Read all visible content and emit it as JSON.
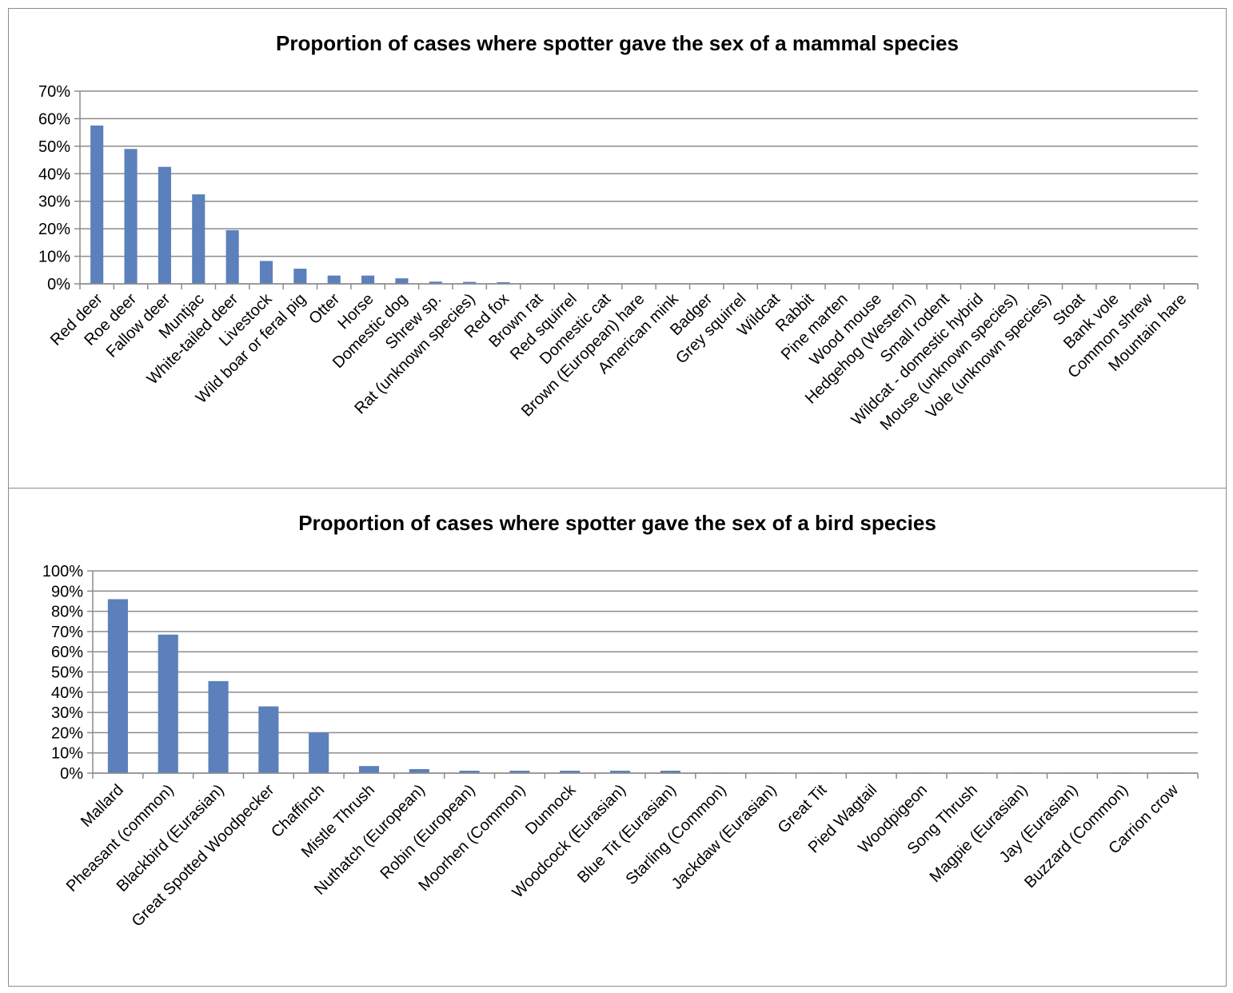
{
  "colors": {
    "bar": "#5b80bb",
    "grid": "#8c8c8c",
    "border": "#8c8c8c"
  },
  "chart_data": [
    {
      "type": "bar",
      "title": "Proportion of cases where spotter gave the sex of a mammal species",
      "xlabel": "",
      "ylabel": "",
      "ylim": [
        0,
        70
      ],
      "yticks": [
        0,
        10,
        20,
        30,
        40,
        50,
        60,
        70
      ],
      "ytick_labels": [
        "0%",
        "10%",
        "20%",
        "30%",
        "40%",
        "50%",
        "60%",
        "70%"
      ],
      "grid": true,
      "legend": "none",
      "categories": [
        "Red deer",
        "Roe deer",
        "Fallow deer",
        "Muntjac",
        "White-tailed deer",
        "Livestock",
        "Wild boar or feral pig",
        "Otter",
        "Horse",
        "Domestic dog",
        "Shrew sp.",
        "Rat (unknown species)",
        "Red fox",
        "Brown rat",
        "Red squirrel",
        "Domestic cat",
        "Brown (European) hare",
        "American mink",
        "Badger",
        "Grey squirrel",
        "Wildcat",
        "Rabbit",
        "Pine marten",
        "Wood mouse",
        "Hedgehog (Western)",
        "Small rodent",
        "Wildcat - domestic hybrid",
        "Mouse (unknown species)",
        "Vole (unknown species)",
        "Stoat",
        "Bank vole",
        "Common shrew",
        "Mountain hare"
      ],
      "values": [
        57.5,
        49,
        42.5,
        32.5,
        19.5,
        8.3,
        5.5,
        3,
        3,
        2,
        0.8,
        0.7,
        0.6,
        0,
        0,
        0,
        0,
        0,
        0,
        0,
        0,
        0,
        0,
        0,
        0,
        0,
        0,
        0,
        0,
        0,
        0,
        0,
        0
      ]
    },
    {
      "type": "bar",
      "title": "Proportion of cases where spotter gave the sex of a bird species",
      "xlabel": "",
      "ylabel": "",
      "ylim": [
        0,
        100
      ],
      "yticks": [
        0,
        10,
        20,
        30,
        40,
        50,
        60,
        70,
        80,
        90,
        100
      ],
      "ytick_labels": [
        "0%",
        "10%",
        "20%",
        "30%",
        "40%",
        "50%",
        "60%",
        "70%",
        "80%",
        "90%",
        "100%"
      ],
      "grid": true,
      "legend": "none",
      "categories": [
        "Mallard",
        "Pheasant (common)",
        "Blackbird (Eurasian)",
        "Great Spotted Woodpecker",
        "Chaffinch",
        "Mistle Thrush",
        "Nuthatch (European)",
        "Robin (European)",
        "Moorhen (Common)",
        "Dunnock",
        "Woodcock (Eurasian)",
        "Blue Tit (Eurasian)",
        "Starling (Common)",
        "Jackdaw (Eurasian)",
        "Great Tit",
        "Pied Wagtail",
        "Woodpigeon",
        "Song Thrush",
        "Magpie (Eurasian)",
        "Jay (Eurasian)",
        "Buzzard (Common)",
        "Carrion crow"
      ],
      "values": [
        86,
        68.5,
        45.5,
        33,
        20,
        3.5,
        2,
        1.2,
        1.2,
        1.2,
        1.2,
        1.2,
        0.3,
        0.3,
        0.3,
        0.3,
        0.3,
        0.3,
        0.3,
        0.3,
        0.3,
        0.3
      ]
    }
  ]
}
